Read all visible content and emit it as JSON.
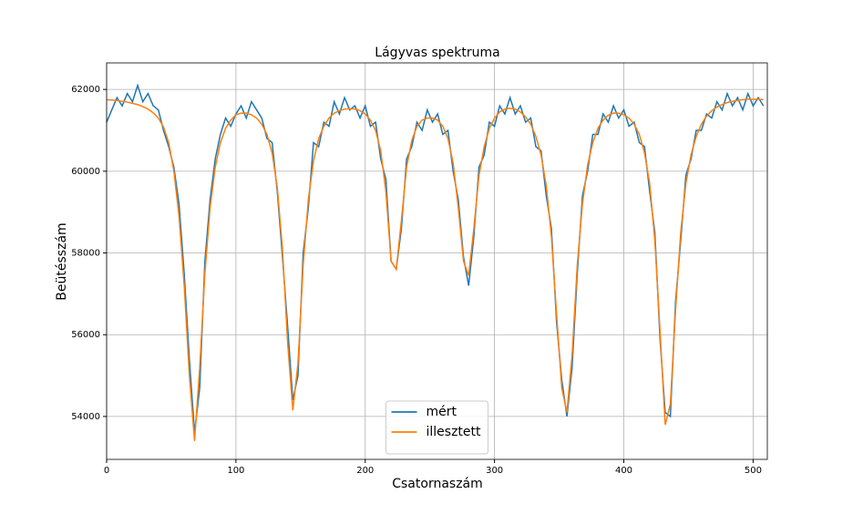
{
  "chart_data": {
    "type": "line",
    "title": "Lágyvas spektruma",
    "x_label": "Csatornaszám",
    "y_label": "Beütésszám",
    "xlim": [
      0,
      511
    ],
    "ylim": [
      52950,
      62650
    ],
    "xticks": [
      0,
      100,
      200,
      300,
      400,
      500
    ],
    "yticks": [
      54000,
      56000,
      58000,
      60000,
      62000
    ],
    "grid": true,
    "legend": "lower center",
    "x": [
      0,
      4,
      8,
      12,
      16,
      20,
      24,
      28,
      32,
      36,
      40,
      44,
      48,
      52,
      56,
      60,
      64,
      68,
      72,
      76,
      80,
      84,
      88,
      92,
      96,
      100,
      104,
      108,
      112,
      116,
      120,
      124,
      128,
      132,
      136,
      140,
      144,
      148,
      152,
      156,
      160,
      164,
      168,
      172,
      176,
      180,
      184,
      188,
      192,
      196,
      200,
      204,
      208,
      212,
      216,
      220,
      224,
      228,
      232,
      236,
      240,
      244,
      248,
      252,
      256,
      260,
      264,
      268,
      272,
      276,
      280,
      284,
      288,
      292,
      296,
      300,
      304,
      308,
      312,
      316,
      320,
      324,
      328,
      332,
      336,
      340,
      344,
      348,
      352,
      356,
      360,
      364,
      368,
      372,
      376,
      380,
      384,
      388,
      392,
      396,
      400,
      404,
      408,
      412,
      416,
      420,
      424,
      428,
      432,
      436,
      440,
      444,
      448,
      452,
      456,
      460,
      464,
      468,
      472,
      476,
      480,
      484,
      488,
      492,
      496,
      500,
      504,
      508
    ],
    "series": [
      {
        "name": "mért",
        "color": "#1f77b4",
        "values": [
          61200,
          61500,
          61800,
          61600,
          61900,
          61700,
          62100,
          61700,
          61900,
          61600,
          61500,
          61000,
          60600,
          60100,
          59200,
          57500,
          55400,
          53600,
          54700,
          57800,
          59300,
          60300,
          60900,
          61300,
          61100,
          61400,
          61600,
          61300,
          61700,
          61500,
          61300,
          60800,
          60700,
          59500,
          57900,
          56200,
          54400,
          55000,
          58000,
          59100,
          60700,
          60600,
          61200,
          61100,
          61700,
          61400,
          61800,
          61500,
          61600,
          61300,
          61600,
          61100,
          61200,
          60300,
          59800,
          57800,
          57600,
          58600,
          60300,
          60600,
          61200,
          61000,
          61500,
          61200,
          61400,
          60900,
          61000,
          60000,
          59300,
          57900,
          57200,
          58400,
          60100,
          60400,
          61200,
          61100,
          61600,
          61400,
          61800,
          61400,
          61600,
          61200,
          61300,
          60600,
          60500,
          59400,
          58600,
          56300,
          54900,
          54000,
          55200,
          57500,
          59400,
          60000,
          60900,
          60900,
          61400,
          61200,
          61600,
          61300,
          61500,
          61100,
          61200,
          60700,
          60600,
          59500,
          58500,
          55900,
          54100,
          54000,
          56800,
          58300,
          59900,
          60300,
          61000,
          61000,
          61400,
          61300,
          61700,
          61500,
          61900,
          61600,
          61800,
          61500,
          61900,
          61600,
          61800,
          61600
        ]
      },
      {
        "name": "illesztett",
        "color": "#ff7f0e",
        "values": [
          61750,
          61740,
          61730,
          61710,
          61690,
          61660,
          61630,
          61580,
          61520,
          61430,
          61300,
          61080,
          60700,
          60000,
          58900,
          57200,
          55000,
          53400,
          55200,
          57500,
          59100,
          60100,
          60700,
          61050,
          61250,
          61380,
          61420,
          61420,
          61380,
          61300,
          61150,
          60900,
          60450,
          59600,
          58100,
          55800,
          54150,
          55300,
          57700,
          59300,
          60250,
          60800,
          61100,
          61300,
          61420,
          61480,
          61520,
          61530,
          61520,
          61480,
          61400,
          61250,
          61000,
          60500,
          59500,
          57800,
          57600,
          58800,
          60100,
          60750,
          61100,
          61250,
          61300,
          61300,
          61250,
          61100,
          60800,
          60200,
          59100,
          57800,
          57450,
          58600,
          59900,
          60600,
          61050,
          61300,
          61450,
          61520,
          61540,
          61520,
          61450,
          61330,
          61150,
          60850,
          60400,
          59650,
          58400,
          56500,
          54700,
          54100,
          55500,
          57700,
          59200,
          60150,
          60700,
          61050,
          61250,
          61370,
          61420,
          61420,
          61380,
          61300,
          61150,
          60900,
          60450,
          59700,
          58300,
          56100,
          53800,
          54300,
          56600,
          58500,
          59700,
          60400,
          60850,
          61150,
          61350,
          61480,
          61570,
          61630,
          61680,
          61710,
          61730,
          61750,
          61760,
          61760,
          61760,
          61750
        ]
      }
    ]
  }
}
